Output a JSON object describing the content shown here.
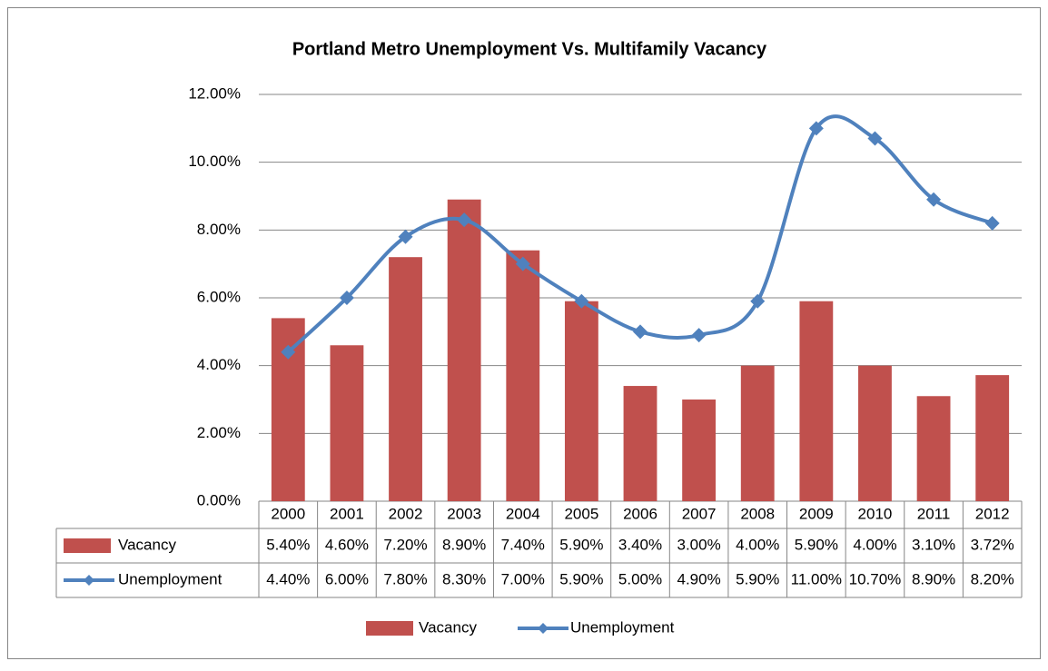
{
  "chart_data": {
    "type": "bar-line",
    "title": "Portland Metro Unemployment Vs. Multifamily Vacancy",
    "categories": [
      "2000",
      "2001",
      "2002",
      "2003",
      "2004",
      "2005",
      "2006",
      "2007",
      "2008",
      "2009",
      "2010",
      "2011",
      "2012"
    ],
    "series": [
      {
        "name": "Vacancy",
        "type": "bar",
        "color": "#c0504d",
        "values": [
          5.4,
          4.6,
          7.2,
          8.9,
          7.4,
          5.9,
          3.4,
          3.0,
          4.0,
          5.9,
          4.0,
          3.1,
          3.72
        ],
        "value_labels": [
          "5.40%",
          "4.60%",
          "7.20%",
          "8.90%",
          "7.40%",
          "5.90%",
          "3.40%",
          "3.00%",
          "4.00%",
          "5.90%",
          "4.00%",
          "3.10%",
          "3.72%"
        ]
      },
      {
        "name": "Unemployment",
        "type": "line",
        "color": "#4f81bd",
        "values": [
          4.4,
          6.0,
          7.8,
          8.3,
          7.0,
          5.9,
          5.0,
          4.9,
          5.9,
          11.0,
          10.7,
          8.9,
          8.2
        ],
        "value_labels": [
          "4.40%",
          "6.00%",
          "7.80%",
          "8.30%",
          "7.00%",
          "5.90%",
          "5.00%",
          "4.90%",
          "5.90%",
          "11.00%",
          "10.70%",
          "8.90%",
          "8.20%"
        ]
      }
    ],
    "ylim": [
      0,
      12
    ],
    "yticks": [
      {
        "value": 0,
        "label": "0.00%"
      },
      {
        "value": 2,
        "label": "2.00%"
      },
      {
        "value": 4,
        "label": "4.00%"
      },
      {
        "value": 6,
        "label": "6.00%"
      },
      {
        "value": 8,
        "label": "8.00%"
      },
      {
        "value": 10,
        "label": "10.00%"
      },
      {
        "value": 12,
        "label": "12.00%"
      }
    ],
    "grid": true,
    "legend": "bottom",
    "data_table": true
  }
}
